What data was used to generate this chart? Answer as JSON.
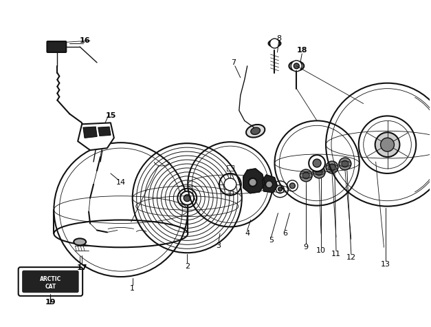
{
  "bg_color": "#ffffff",
  "line_color": "#111111",
  "label_color": "#000000",
  "fig_width": 6.27,
  "fig_height": 4.75
}
